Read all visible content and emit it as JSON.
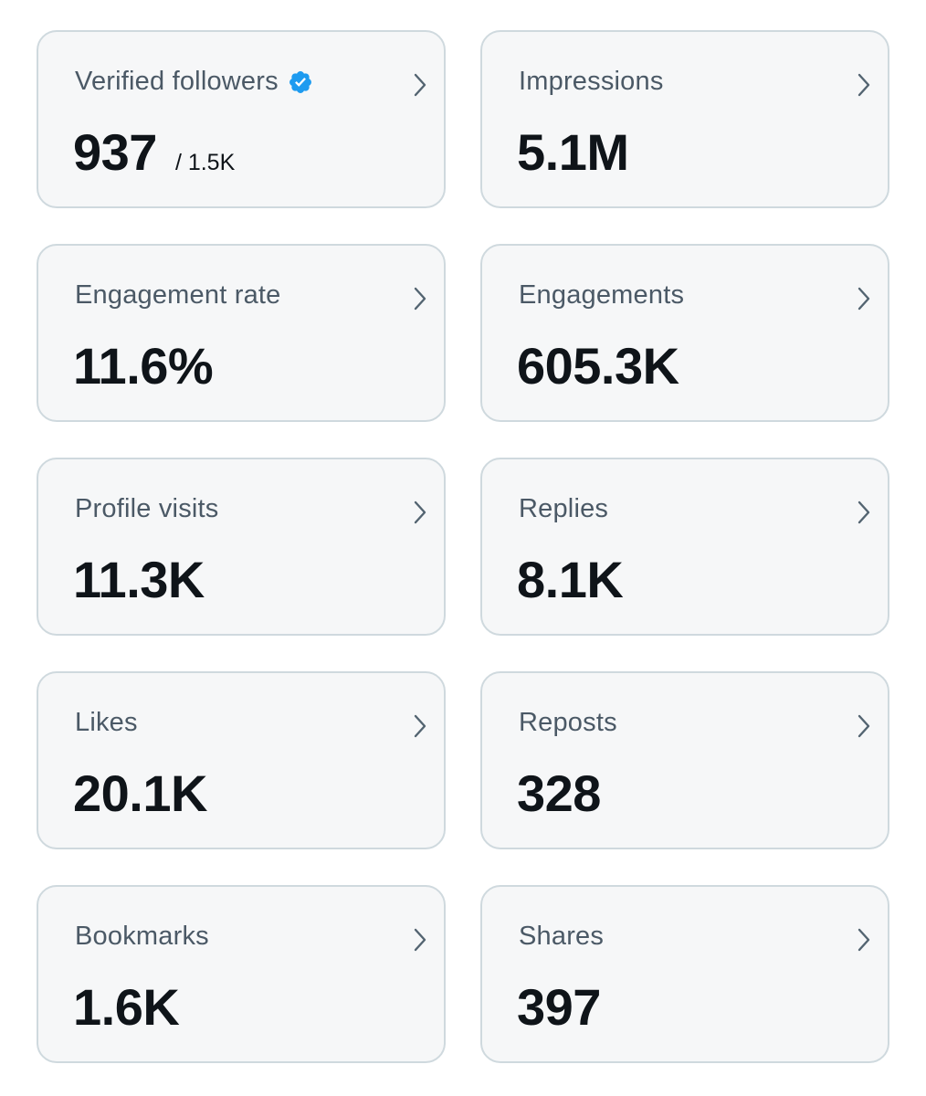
{
  "colors": {
    "card_bg": "#f6f7f8",
    "card_border": "#cfd9de",
    "title": "#4b5966",
    "value": "#0f1419",
    "chevron": "#536471",
    "verified": "#1d9bf0"
  },
  "cards": [
    {
      "title": "Verified followers",
      "value": "937",
      "sub": "/ 1.5K",
      "badge_icon": "verified-badge-icon"
    },
    {
      "title": "Impressions",
      "value": "5.1M"
    },
    {
      "title": "Engagement rate",
      "value": "11.6%"
    },
    {
      "title": "Engagements",
      "value": "605.3K"
    },
    {
      "title": "Profile visits",
      "value": "11.3K"
    },
    {
      "title": "Replies",
      "value": "8.1K"
    },
    {
      "title": "Likes",
      "value": "20.1K"
    },
    {
      "title": "Reposts",
      "value": "328"
    },
    {
      "title": "Bookmarks",
      "value": "1.6K"
    },
    {
      "title": "Shares",
      "value": "397"
    }
  ]
}
